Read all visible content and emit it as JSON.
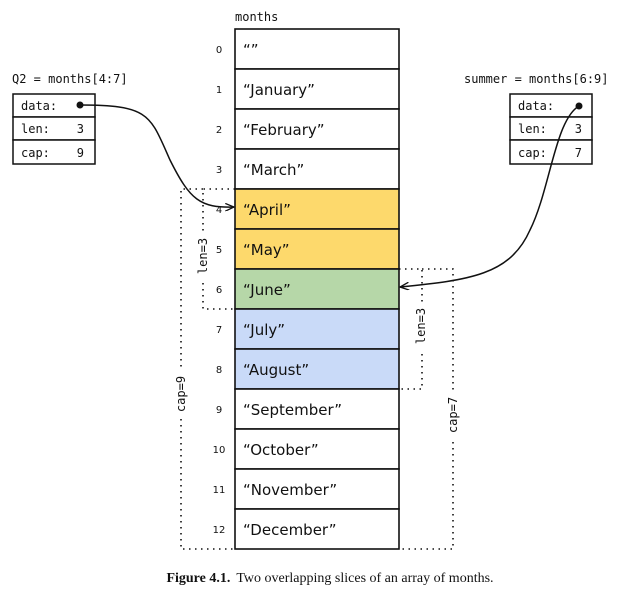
{
  "array": {
    "label": "months",
    "cells": [
      {
        "index": "0",
        "value": "“”",
        "color": "#ffffff"
      },
      {
        "index": "1",
        "value": "“January”",
        "color": "#ffffff"
      },
      {
        "index": "2",
        "value": "“February”",
        "color": "#ffffff"
      },
      {
        "index": "3",
        "value": "“March”",
        "color": "#ffffff"
      },
      {
        "index": "4",
        "value": "“April”",
        "color": "#fdd96c"
      },
      {
        "index": "5",
        "value": "“May”",
        "color": "#fdd96c"
      },
      {
        "index": "6",
        "value": "“June”",
        "color": "#b6d7a8"
      },
      {
        "index": "7",
        "value": "“July”",
        "color": "#c9daf8"
      },
      {
        "index": "8",
        "value": "“August”",
        "color": "#c9daf8"
      },
      {
        "index": "9",
        "value": "“September”",
        "color": "#ffffff"
      },
      {
        "index": "10",
        "value": "“October”",
        "color": "#ffffff"
      },
      {
        "index": "11",
        "value": "“November”",
        "color": "#ffffff"
      },
      {
        "index": "12",
        "value": "“December”",
        "color": "#ffffff"
      }
    ]
  },
  "q2": {
    "title": "Q2 = months[4:7]",
    "data_label": "data:",
    "len_label": "len:",
    "len_value": "3",
    "cap_label": "cap:",
    "cap_value": "9",
    "len_bracket": "len=3",
    "cap_bracket": "cap=9"
  },
  "summer": {
    "title": "summer = months[6:9]",
    "data_label": "data:",
    "len_label": "len:",
    "len_value": "3",
    "cap_label": "cap:",
    "cap_value": "7",
    "len_bracket": "len=3",
    "cap_bracket": "cap=7"
  },
  "caption": {
    "label": "Figure 4.1.",
    "text": "Two overlapping slices of an array of months."
  }
}
